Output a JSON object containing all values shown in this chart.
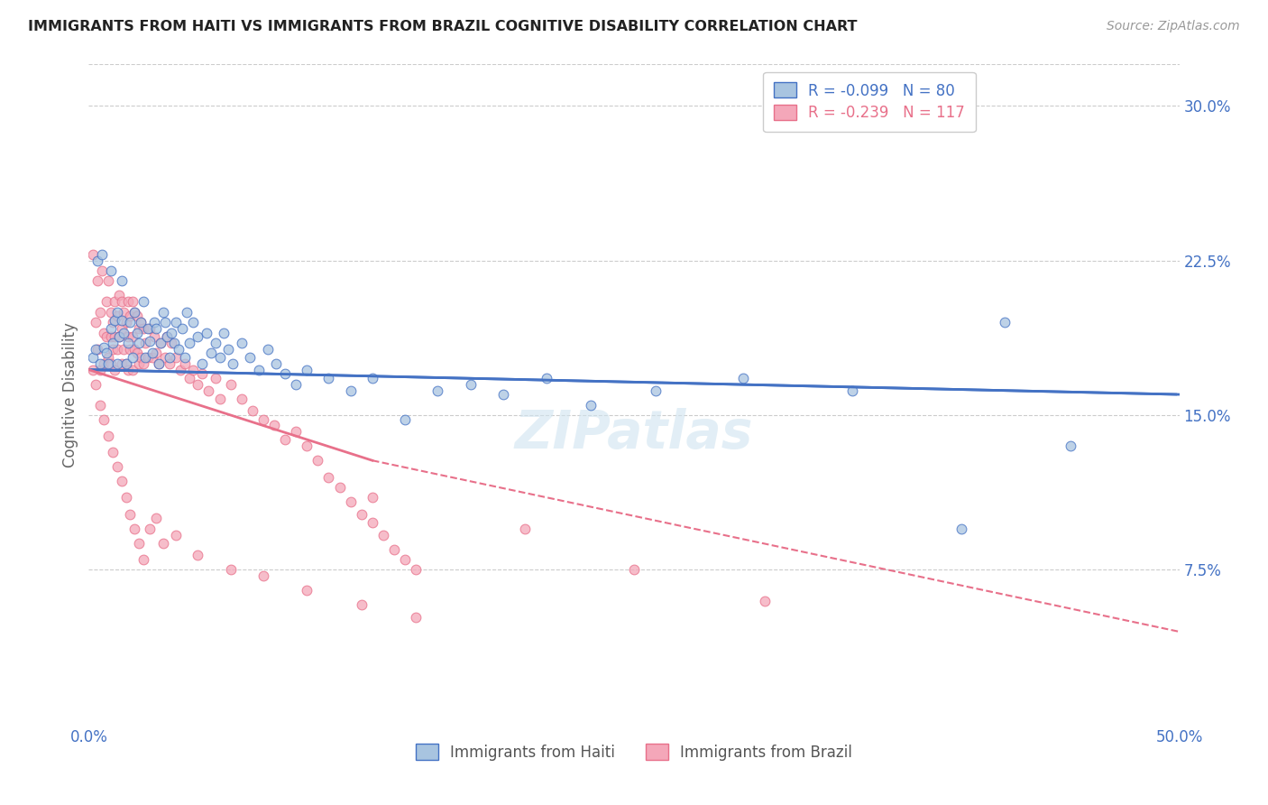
{
  "title": "IMMIGRANTS FROM HAITI VS IMMIGRANTS FROM BRAZIL COGNITIVE DISABILITY CORRELATION CHART",
  "source": "Source: ZipAtlas.com",
  "ylabel": "Cognitive Disability",
  "right_yticks": [
    "7.5%",
    "15.0%",
    "22.5%",
    "30.0%"
  ],
  "right_ytick_vals": [
    0.075,
    0.15,
    0.225,
    0.3
  ],
  "xlim": [
    0.0,
    0.5
  ],
  "ylim": [
    0.0,
    0.32
  ],
  "haiti_R": "-0.099",
  "haiti_N": "80",
  "brazil_R": "-0.239",
  "brazil_N": "117",
  "haiti_color": "#a8c4e0",
  "brazil_color": "#f4a7b9",
  "haiti_line_color": "#4472c4",
  "brazil_line_color": "#e8708a",
  "legend_haiti_label": "Immigrants from Haiti",
  "legend_brazil_label": "Immigrants from Brazil",
  "haiti_line_x0": 0.0,
  "haiti_line_y0": 0.172,
  "haiti_line_x1": 0.5,
  "haiti_line_y1": 0.16,
  "brazil_line_solid_x0": 0.0,
  "brazil_line_solid_y0": 0.172,
  "brazil_line_solid_x1": 0.13,
  "brazil_line_solid_y1": 0.128,
  "brazil_line_dash_x0": 0.13,
  "brazil_line_dash_y0": 0.128,
  "brazil_line_dash_x1": 0.5,
  "brazil_line_dash_y1": 0.045,
  "haiti_x": [
    0.002,
    0.003,
    0.004,
    0.005,
    0.006,
    0.007,
    0.008,
    0.009,
    0.01,
    0.01,
    0.011,
    0.012,
    0.013,
    0.013,
    0.014,
    0.015,
    0.015,
    0.016,
    0.017,
    0.018,
    0.019,
    0.02,
    0.021,
    0.022,
    0.023,
    0.024,
    0.025,
    0.026,
    0.027,
    0.028,
    0.029,
    0.03,
    0.031,
    0.032,
    0.033,
    0.034,
    0.035,
    0.036,
    0.037,
    0.038,
    0.039,
    0.04,
    0.041,
    0.043,
    0.044,
    0.045,
    0.046,
    0.048,
    0.05,
    0.052,
    0.054,
    0.056,
    0.058,
    0.06,
    0.062,
    0.064,
    0.066,
    0.07,
    0.074,
    0.078,
    0.082,
    0.086,
    0.09,
    0.095,
    0.1,
    0.11,
    0.12,
    0.13,
    0.145,
    0.16,
    0.175,
    0.19,
    0.21,
    0.23,
    0.26,
    0.3,
    0.35,
    0.4,
    0.42,
    0.45
  ],
  "haiti_y": [
    0.178,
    0.182,
    0.225,
    0.175,
    0.228,
    0.183,
    0.18,
    0.175,
    0.192,
    0.22,
    0.185,
    0.196,
    0.2,
    0.175,
    0.188,
    0.196,
    0.215,
    0.19,
    0.175,
    0.185,
    0.195,
    0.178,
    0.2,
    0.19,
    0.185,
    0.195,
    0.205,
    0.178,
    0.192,
    0.186,
    0.18,
    0.195,
    0.192,
    0.175,
    0.185,
    0.2,
    0.195,
    0.188,
    0.178,
    0.19,
    0.185,
    0.195,
    0.182,
    0.192,
    0.178,
    0.2,
    0.185,
    0.195,
    0.188,
    0.175,
    0.19,
    0.18,
    0.185,
    0.178,
    0.19,
    0.182,
    0.175,
    0.185,
    0.178,
    0.172,
    0.182,
    0.175,
    0.17,
    0.165,
    0.172,
    0.168,
    0.162,
    0.168,
    0.148,
    0.162,
    0.165,
    0.16,
    0.168,
    0.155,
    0.162,
    0.168,
    0.162,
    0.095,
    0.195,
    0.135
  ],
  "brazil_x": [
    0.002,
    0.003,
    0.004,
    0.004,
    0.005,
    0.005,
    0.006,
    0.007,
    0.007,
    0.008,
    0.008,
    0.009,
    0.009,
    0.01,
    0.01,
    0.01,
    0.011,
    0.011,
    0.012,
    0.012,
    0.012,
    0.013,
    0.013,
    0.014,
    0.014,
    0.015,
    0.015,
    0.015,
    0.016,
    0.016,
    0.017,
    0.017,
    0.018,
    0.018,
    0.018,
    0.019,
    0.019,
    0.02,
    0.02,
    0.02,
    0.021,
    0.021,
    0.022,
    0.022,
    0.023,
    0.023,
    0.024,
    0.024,
    0.025,
    0.025,
    0.026,
    0.027,
    0.028,
    0.029,
    0.03,
    0.031,
    0.032,
    0.033,
    0.035,
    0.036,
    0.037,
    0.038,
    0.04,
    0.042,
    0.044,
    0.046,
    0.048,
    0.05,
    0.052,
    0.055,
    0.058,
    0.06,
    0.065,
    0.07,
    0.075,
    0.08,
    0.085,
    0.09,
    0.095,
    0.1,
    0.105,
    0.11,
    0.115,
    0.12,
    0.125,
    0.13,
    0.135,
    0.14,
    0.145,
    0.15,
    0.002,
    0.003,
    0.005,
    0.007,
    0.009,
    0.011,
    0.013,
    0.015,
    0.017,
    0.019,
    0.021,
    0.023,
    0.025,
    0.028,
    0.031,
    0.034,
    0.04,
    0.05,
    0.065,
    0.08,
    0.1,
    0.125,
    0.15,
    0.13,
    0.2,
    0.25,
    0.31
  ],
  "brazil_y": [
    0.228,
    0.195,
    0.215,
    0.182,
    0.2,
    0.172,
    0.22,
    0.19,
    0.175,
    0.205,
    0.188,
    0.215,
    0.178,
    0.2,
    0.188,
    0.175,
    0.195,
    0.182,
    0.205,
    0.188,
    0.172,
    0.198,
    0.182,
    0.208,
    0.188,
    0.205,
    0.192,
    0.175,
    0.2,
    0.182,
    0.195,
    0.175,
    0.205,
    0.188,
    0.172,
    0.198,
    0.182,
    0.205,
    0.188,
    0.172,
    0.2,
    0.182,
    0.198,
    0.18,
    0.192,
    0.175,
    0.195,
    0.178,
    0.192,
    0.175,
    0.185,
    0.178,
    0.192,
    0.178,
    0.188,
    0.18,
    0.175,
    0.185,
    0.178,
    0.188,
    0.175,
    0.185,
    0.178,
    0.172,
    0.175,
    0.168,
    0.172,
    0.165,
    0.17,
    0.162,
    0.168,
    0.158,
    0.165,
    0.158,
    0.152,
    0.148,
    0.145,
    0.138,
    0.142,
    0.135,
    0.128,
    0.12,
    0.115,
    0.108,
    0.102,
    0.098,
    0.092,
    0.085,
    0.08,
    0.075,
    0.172,
    0.165,
    0.155,
    0.148,
    0.14,
    0.132,
    0.125,
    0.118,
    0.11,
    0.102,
    0.095,
    0.088,
    0.08,
    0.095,
    0.1,
    0.088,
    0.092,
    0.082,
    0.075,
    0.072,
    0.065,
    0.058,
    0.052,
    0.11,
    0.095,
    0.075,
    0.06
  ]
}
